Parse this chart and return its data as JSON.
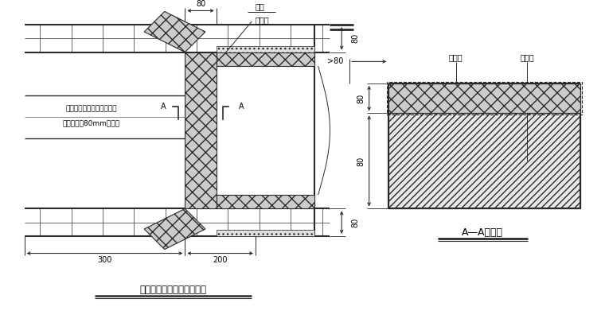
{
  "line_color": "#2a2a2a",
  "title_left": "门窗洞口附加网格布示意图",
  "title_right": "A—A剖面图",
  "label_fujia": "附加",
  "label_wanggebu": "网格布",
  "label_jisuban": "挤塑板",
  "label_80_top": "80",
  "label_80_right_top": "80",
  "label_80_right_bot": "80",
  "label_gt80": ">80",
  "label_300": "300",
  "label_200": "200",
  "label_left_text1": "与墙体接触一面用粘结砂浆",
  "label_left_text2": "预粘不小于80mm网格布",
  "label_A_left": "A",
  "label_A_right": "A"
}
